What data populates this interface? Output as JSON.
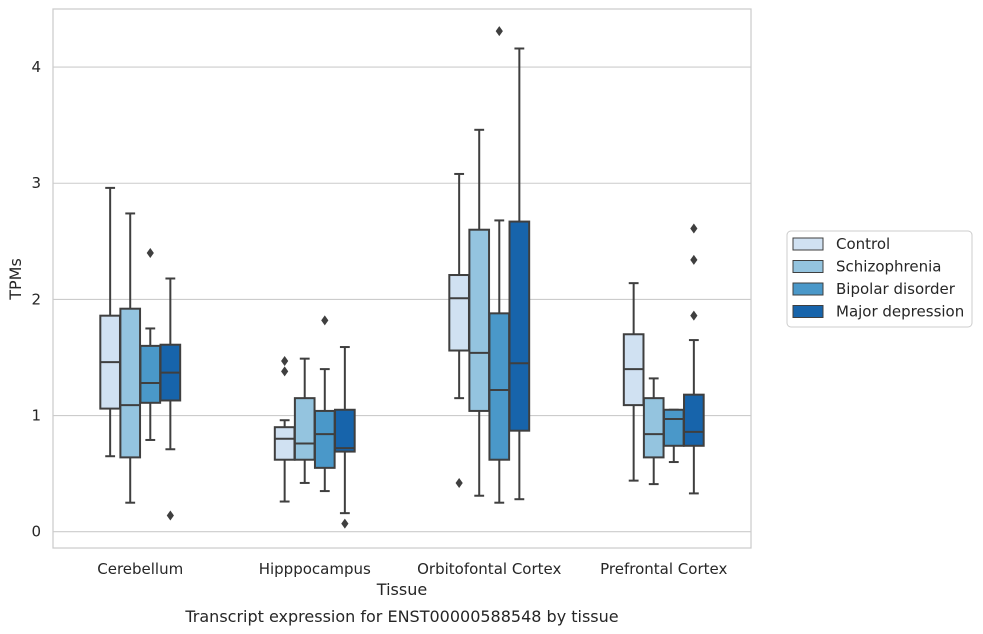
{
  "chart_data": {
    "type": "box",
    "xlabel": "Tissue",
    "ylabel": "TPMs",
    "caption": "Transcript expression for ENST00000588548 by tissue",
    "ylim": [
      -0.14,
      4.5
    ],
    "yticks": [
      "0",
      "1",
      "2",
      "3",
      "4"
    ],
    "grid": "horizontal",
    "legend_position": "right",
    "categories": [
      "Cerebellum",
      "Hipppocampus",
      "Orbitofontal Cortex",
      "Prefrontal Cortex"
    ],
    "series": [
      {
        "name": "Control",
        "color": "#d0e1f2",
        "boxes": [
          {
            "whislo": 0.65,
            "q1": 1.06,
            "med": 1.46,
            "q3": 1.86,
            "whishi": 2.96,
            "fliers": []
          },
          {
            "whislo": 0.26,
            "q1": 0.62,
            "med": 0.8,
            "q3": 0.9,
            "whishi": 0.96,
            "fliers": [
              1.38,
              1.47
            ]
          },
          {
            "whislo": 1.15,
            "q1": 1.56,
            "med": 2.01,
            "q3": 2.21,
            "whishi": 3.08,
            "fliers": [
              0.42
            ]
          },
          {
            "whislo": 0.44,
            "q1": 1.09,
            "med": 1.4,
            "q3": 1.7,
            "whishi": 2.14,
            "fliers": []
          }
        ]
      },
      {
        "name": "Schizophrenia",
        "color": "#94c4df",
        "boxes": [
          {
            "whislo": 0.25,
            "q1": 0.64,
            "med": 1.09,
            "q3": 1.92,
            "whishi": 2.74,
            "fliers": []
          },
          {
            "whislo": 0.42,
            "q1": 0.62,
            "med": 0.76,
            "q3": 1.15,
            "whishi": 1.49,
            "fliers": []
          },
          {
            "whislo": 0.31,
            "q1": 1.04,
            "med": 1.54,
            "q3": 2.6,
            "whishi": 3.46,
            "fliers": []
          },
          {
            "whislo": 0.41,
            "q1": 0.64,
            "med": 0.84,
            "q3": 1.15,
            "whishi": 1.32,
            "fliers": []
          }
        ]
      },
      {
        "name": "Bipolar disorder",
        "color": "#4a98c9",
        "boxes": [
          {
            "whislo": 0.79,
            "q1": 1.11,
            "med": 1.28,
            "q3": 1.6,
            "whishi": 1.75,
            "fliers": [
              2.4
            ]
          },
          {
            "whislo": 0.35,
            "q1": 0.55,
            "med": 0.84,
            "q3": 1.04,
            "whishi": 1.4,
            "fliers": [
              1.82
            ]
          },
          {
            "whislo": 0.25,
            "q1": 0.62,
            "med": 1.22,
            "q3": 1.88,
            "whishi": 2.68,
            "fliers": [
              4.31
            ]
          },
          {
            "whislo": 0.6,
            "q1": 0.74,
            "med": 0.97,
            "q3": 1.05,
            "whishi": 1.05,
            "fliers": []
          }
        ]
      },
      {
        "name": "Major depression",
        "color": "#1764ab",
        "boxes": [
          {
            "whislo": 0.71,
            "q1": 1.13,
            "med": 1.37,
            "q3": 1.61,
            "whishi": 2.18,
            "fliers": [
              0.14
            ]
          },
          {
            "whislo": 0.16,
            "q1": 0.69,
            "med": 0.72,
            "q3": 1.05,
            "whishi": 1.59,
            "fliers": [
              0.07
            ]
          },
          {
            "whislo": 0.28,
            "q1": 0.87,
            "med": 1.45,
            "q3": 2.67,
            "whishi": 4.16,
            "fliers": []
          },
          {
            "whislo": 0.33,
            "q1": 0.74,
            "med": 0.86,
            "q3": 1.18,
            "whishi": 1.65,
            "fliers": [
              1.86,
              2.34,
              2.61
            ]
          }
        ]
      }
    ]
  }
}
